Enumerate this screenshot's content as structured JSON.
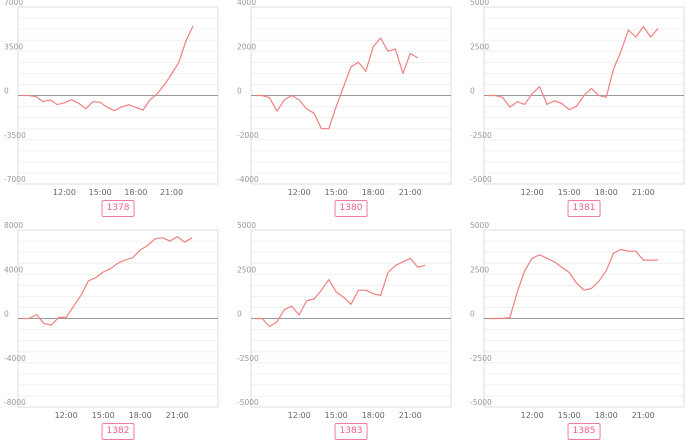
{
  "line_color": "#f08080",
  "badge_color": "#f0608e",
  "chart_data": [
    {
      "type": "line",
      "label": "1378",
      "ylim": [
        -7000,
        7000
      ],
      "yticks": [
        7000,
        3500,
        0,
        -3500,
        -7000
      ],
      "xticks": [
        {
          "label": "12:00",
          "x": 6
        },
        {
          "label": "15:00",
          "x": 11
        },
        {
          "label": "18:00",
          "x": 16
        },
        {
          "label": "21:00",
          "x": 21
        }
      ],
      "xlim": [
        -0.5,
        27.5
      ],
      "grid": true,
      "x": [
        0,
        1,
        2,
        3,
        4,
        5,
        6,
        7,
        8,
        9,
        10,
        11,
        12,
        13,
        14,
        15,
        16,
        17,
        18,
        19,
        20,
        21,
        22,
        23,
        24
      ],
      "values": [
        0,
        0,
        -80,
        -480,
        -350,
        -720,
        -580,
        -330,
        -620,
        -1050,
        -480,
        -540,
        -930,
        -1200,
        -900,
        -730,
        -950,
        -1150,
        -350,
        150,
        850,
        1700,
        2600,
        4300,
        5500
      ]
    },
    {
      "type": "line",
      "label": "1380",
      "ylim": [
        -4000,
        4000
      ],
      "yticks": [
        4000,
        2000,
        0,
        -2000,
        -4000
      ],
      "xticks": [
        {
          "label": "12:00",
          "x": 6
        },
        {
          "label": "15:00",
          "x": 11
        },
        {
          "label": "18:00",
          "x": 16
        },
        {
          "label": "21:00",
          "x": 21
        }
      ],
      "xlim": [
        -0.5,
        26.5
      ],
      "grid": true,
      "x": [
        0,
        1,
        2,
        3,
        4,
        5,
        6,
        7,
        8,
        9,
        10,
        11,
        12,
        13,
        14,
        15,
        16,
        17,
        18,
        19,
        20,
        21,
        22
      ],
      "values": [
        0,
        0,
        -100,
        -700,
        -200,
        0,
        -200,
        -600,
        -800,
        -1500,
        -1500,
        -500,
        400,
        1300,
        1500,
        1100,
        2200,
        2600,
        2000,
        2100,
        1000,
        1900,
        1700
      ]
    },
    {
      "type": "line",
      "label": "1381",
      "ylim": [
        -5000,
        5000
      ],
      "yticks": [
        5000,
        2500,
        0,
        -2500,
        -5000
      ],
      "xticks": [
        {
          "label": "12:00",
          "x": 6
        },
        {
          "label": "15:00",
          "x": 11
        },
        {
          "label": "18:00",
          "x": 16
        },
        {
          "label": "21:00",
          "x": 21
        }
      ],
      "xlim": [
        -0.5,
        26.5
      ],
      "grid": true,
      "x": [
        0,
        1,
        2,
        3,
        4,
        5,
        6,
        7,
        8,
        9,
        10,
        11,
        12,
        13,
        14,
        15,
        16,
        17,
        18,
        19,
        20,
        21,
        22,
        23
      ],
      "values": [
        0,
        0,
        -100,
        -650,
        -350,
        -500,
        100,
        500,
        -500,
        -300,
        -450,
        -800,
        -600,
        0,
        400,
        0,
        -100,
        1500,
        2500,
        3700,
        3300,
        3900,
        3300,
        3800
      ]
    },
    {
      "type": "line",
      "label": "1382",
      "ylim": [
        -8000,
        8000
      ],
      "yticks": [
        8000,
        4000,
        0,
        -4000,
        -8000
      ],
      "xticks": [
        {
          "label": "12:00",
          "x": 6
        },
        {
          "label": "15:00",
          "x": 11
        },
        {
          "label": "18:00",
          "x": 16
        },
        {
          "label": "21:00",
          "x": 21
        }
      ],
      "xlim": [
        -0.5,
        26.5
      ],
      "grid": true,
      "x": [
        0,
        1,
        2,
        3,
        4,
        5,
        6,
        7,
        8,
        9,
        10,
        11,
        12,
        13,
        14,
        15,
        16,
        17,
        18,
        19,
        20,
        21,
        22,
        23
      ],
      "values": [
        0,
        0,
        350,
        -450,
        -600,
        100,
        100,
        1100,
        2100,
        3400,
        3700,
        4200,
        4500,
        5000,
        5300,
        5500,
        6200,
        6600,
        7200,
        7300,
        7000,
        7400,
        6900,
        7300
      ]
    },
    {
      "type": "line",
      "label": "1383",
      "ylim": [
        -5000,
        5000
      ],
      "yticks": [
        5000,
        2500,
        0,
        -2500,
        -5000
      ],
      "xticks": [
        {
          "label": "12:00",
          "x": 6
        },
        {
          "label": "15:00",
          "x": 11
        },
        {
          "label": "18:00",
          "x": 16
        },
        {
          "label": "21:00",
          "x": 21
        }
      ],
      "xlim": [
        -0.5,
        26.5
      ],
      "grid": true,
      "x": [
        0,
        1,
        2,
        3,
        4,
        5,
        6,
        7,
        8,
        9,
        10,
        11,
        12,
        13,
        14,
        15,
        16,
        17,
        18,
        19,
        20,
        21,
        22,
        23
      ],
      "values": [
        0,
        0,
        -450,
        -200,
        500,
        700,
        200,
        1000,
        1100,
        1600,
        2200,
        1500,
        1200,
        800,
        1600,
        1600,
        1400,
        1300,
        2600,
        3000,
        3200,
        3400,
        2900,
        3000
      ]
    },
    {
      "type": "line",
      "label": "1385",
      "ylim": [
        -5000,
        5000
      ],
      "yticks": [
        5000,
        2500,
        0,
        -2500,
        -5000
      ],
      "xticks": [
        {
          "label": "12:00",
          "x": 6
        },
        {
          "label": "15:00",
          "x": 11
        },
        {
          "label": "18:00",
          "x": 16
        },
        {
          "label": "21:00",
          "x": 21
        }
      ],
      "xlim": [
        -0.5,
        26.5
      ],
      "grid": true,
      "x": [
        0,
        1,
        2,
        3,
        4,
        5,
        6,
        7,
        8,
        9,
        10,
        11,
        12,
        13,
        14,
        15,
        16,
        17,
        18,
        19,
        20,
        21,
        22,
        23
      ],
      "values": [
        0,
        0,
        0,
        50,
        1500,
        2700,
        3400,
        3600,
        3400,
        3200,
        2900,
        2600,
        2000,
        1600,
        1700,
        2100,
        2700,
        3700,
        3900,
        3800,
        3800,
        3300,
        3300,
        3300
      ]
    }
  ]
}
